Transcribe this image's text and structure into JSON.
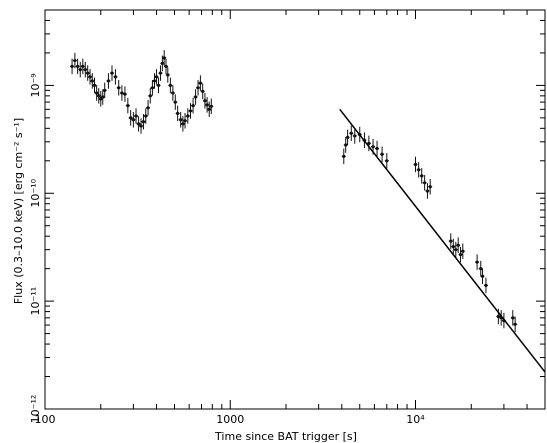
{
  "chart_data": {
    "type": "scatter",
    "title": "",
    "xlabel": "Time since BAT trigger [s]",
    "ylabel": "Flux (0.3–10.0 keV) [erg cm⁻² s⁻¹]",
    "x_scale": "log",
    "y_scale": "log",
    "xlim": [
      100,
      50000
    ],
    "ylim": [
      1e-12,
      5e-09
    ],
    "grid": false,
    "x_ticks": [
      {
        "value": 100,
        "label": "100"
      },
      {
        "value": 1000,
        "label": "1000"
      },
      {
        "value": 10000,
        "label": "10⁴"
      }
    ],
    "y_ticks": [
      {
        "value": 1e-12,
        "label": "10⁻¹²"
      },
      {
        "value": 1e-11,
        "label": "10⁻¹¹"
      },
      {
        "value": 1e-10,
        "label": "10⁻¹⁰"
      },
      {
        "value": 1e-09,
        "label": "10⁻⁹"
      }
    ],
    "series": [
      {
        "points": [
          [
            140,
            1.5e-09
          ],
          [
            145,
            1.7e-09
          ],
          [
            150,
            1.5e-09
          ],
          [
            155,
            1.4e-09
          ],
          [
            160,
            1.5e-09
          ],
          [
            165,
            1.4e-09
          ],
          [
            170,
            1.3e-09
          ],
          [
            175,
            1.2e-09
          ],
          [
            180,
            1.1e-09
          ],
          [
            185,
            1e-09
          ],
          [
            190,
            8.5e-10
          ],
          [
            195,
            8e-10
          ],
          [
            200,
            7.5e-10
          ],
          [
            205,
            7.8e-10
          ],
          [
            210,
            9e-10
          ],
          [
            220,
            1.1e-09
          ],
          [
            230,
            1.3e-09
          ],
          [
            240,
            1.2e-09
          ],
          [
            250,
            9.5e-10
          ],
          [
            260,
            8.5e-10
          ],
          [
            270,
            8.3e-10
          ],
          [
            280,
            6.5e-10
          ],
          [
            290,
            5e-10
          ],
          [
            300,
            4.8e-10
          ],
          [
            310,
            5.2e-10
          ],
          [
            320,
            4.4e-10
          ],
          [
            330,
            4.2e-10
          ],
          [
            340,
            4.6e-10
          ],
          [
            350,
            5.2e-10
          ],
          [
            360,
            6.2e-10
          ],
          [
            370,
            8e-10
          ],
          [
            380,
            9.5e-10
          ],
          [
            390,
            1.1e-09
          ],
          [
            400,
            1.2e-09
          ],
          [
            410,
            1e-09
          ],
          [
            420,
            1.3e-09
          ],
          [
            430,
            1.6e-09
          ],
          [
            440,
            1.8e-09
          ],
          [
            450,
            1.5e-09
          ],
          [
            460,
            1.25e-09
          ],
          [
            475,
            1e-09
          ],
          [
            490,
            8.5e-10
          ],
          [
            505,
            7e-10
          ],
          [
            520,
            5.5e-10
          ],
          [
            540,
            4.8e-10
          ],
          [
            555,
            4.4e-10
          ],
          [
            570,
            4.7e-10
          ],
          [
            590,
            5.2e-10
          ],
          [
            610,
            5.8e-10
          ],
          [
            630,
            6.5e-10
          ],
          [
            650,
            7.8e-10
          ],
          [
            670,
            9.5e-10
          ],
          [
            690,
            1.05e-09
          ],
          [
            710,
            8.8e-10
          ],
          [
            730,
            7.2e-10
          ],
          [
            750,
            6.6e-10
          ],
          [
            770,
            6e-10
          ],
          [
            790,
            6.4e-10
          ]
        ]
      },
      {
        "points": [
          [
            4100,
            2.2e-10
          ],
          [
            4200,
            2.8e-10
          ],
          [
            4300,
            3.3e-10
          ],
          [
            4500,
            3.6e-10
          ],
          [
            4700,
            3.4e-10
          ],
          [
            5000,
            3.5e-10
          ],
          [
            5300,
            3.1e-10
          ],
          [
            5600,
            2.9e-10
          ],
          [
            5900,
            2.7e-10
          ],
          [
            6200,
            2.6e-10
          ],
          [
            6600,
            2.3e-10
          ],
          [
            7000,
            2e-10
          ],
          [
            10000,
            1.85e-10
          ],
          [
            10400,
            1.65e-10
          ],
          [
            10800,
            1.45e-10
          ],
          [
            11200,
            1.25e-10
          ],
          [
            11600,
            1.05e-10
          ],
          [
            12000,
            1.15e-10
          ],
          [
            15500,
            3.6e-11
          ],
          [
            16000,
            3.2e-11
          ],
          [
            16500,
            3e-11
          ],
          [
            17000,
            3.3e-11
          ],
          [
            17500,
            2.7e-11
          ],
          [
            18000,
            2.9e-11
          ],
          [
            21500,
            2.3e-11
          ],
          [
            22500,
            2e-11
          ],
          [
            23000,
            1.7e-11
          ],
          [
            24000,
            1.4e-11
          ],
          [
            28000,
            7.2e-12
          ],
          [
            29000,
            7e-12
          ],
          [
            30000,
            6.6e-12
          ],
          [
            33500,
            7e-12
          ],
          [
            34500,
            6.1e-12
          ]
        ]
      }
    ],
    "fit_line": {
      "from": [
        3900,
        6e-10
      ],
      "to": [
        50000,
        2.2e-12
      ]
    }
  }
}
